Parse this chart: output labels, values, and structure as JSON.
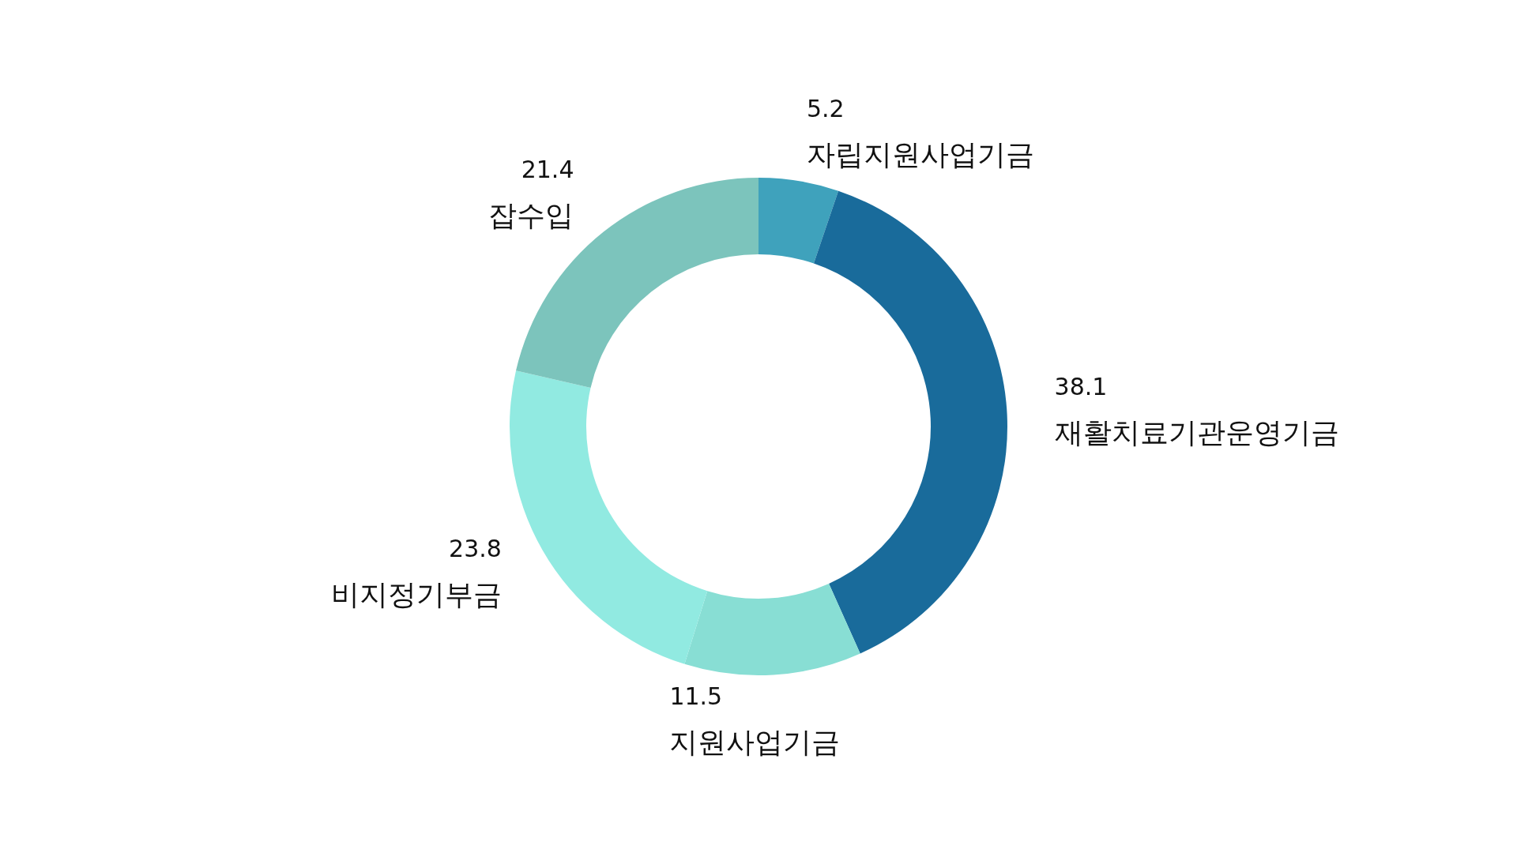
{
  "chart_data": {
    "type": "donut",
    "categories": [
      "자립지원사업기금",
      "재활치료기관운영기금",
      "지원사업기금",
      "비지정기부금",
      "잡수입"
    ],
    "values": [
      5.2,
      38.1,
      11.5,
      23.8,
      21.4
    ],
    "colors": [
      "#3fa2bc",
      "#196b9b",
      "#88ded4",
      "#91eae1",
      "#7cc4bc"
    ],
    "data_labels": true
  }
}
